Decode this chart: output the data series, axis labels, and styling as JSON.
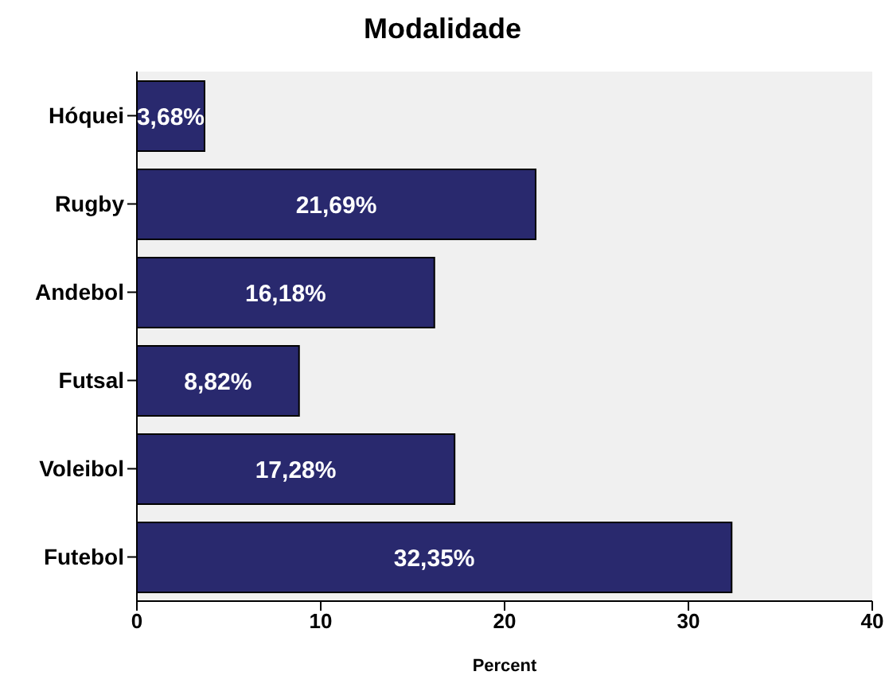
{
  "chart_data": {
    "type": "bar",
    "orientation": "horizontal",
    "title": "Modalidade",
    "xlabel": "Percent",
    "categories": [
      "Hóquei",
      "Rugby",
      "Andebol",
      "Futsal",
      "Voleibol",
      "Futebol"
    ],
    "values": [
      3.68,
      21.69,
      16.18,
      8.82,
      17.28,
      32.35
    ],
    "value_labels": [
      "3,68%",
      "21,69%",
      "16,18%",
      "8,82%",
      "17,28%",
      "32,35%"
    ],
    "color": "#29296e",
    "xlim": [
      0,
      40
    ],
    "xticks": [
      0,
      10,
      20,
      30,
      40
    ]
  }
}
